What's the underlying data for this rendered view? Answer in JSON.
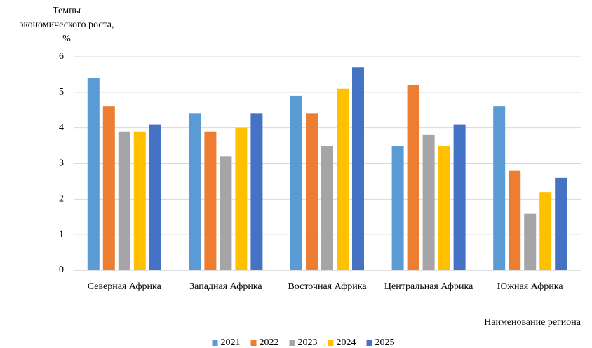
{
  "chart_data": {
    "type": "bar",
    "y_label": [
      "Темпы",
      "экономического роста,",
      "%"
    ],
    "x_label": "Наименование региона",
    "categories": [
      "Северная Африка",
      "Западная Африка",
      "Восточная Африка",
      "Центральная Африка",
      "Южная Африка"
    ],
    "series": [
      {
        "name": "2021",
        "color": "#5b9bd5",
        "values": [
          5.4,
          4.4,
          4.9,
          3.5,
          4.6
        ]
      },
      {
        "name": "2022",
        "color": "#ed7d31",
        "values": [
          4.6,
          3.9,
          4.4,
          5.2,
          2.8
        ]
      },
      {
        "name": "2023",
        "color": "#a5a5a5",
        "values": [
          3.9,
          3.2,
          3.5,
          3.8,
          1.6
        ]
      },
      {
        "name": "2024",
        "color": "#ffc000",
        "values": [
          3.9,
          4.0,
          5.1,
          3.5,
          2.2
        ]
      },
      {
        "name": "2025",
        "color": "#4472c4",
        "values": [
          4.1,
          4.4,
          5.7,
          4.1,
          2.6
        ]
      }
    ],
    "ylim": [
      0,
      6
    ],
    "yticks": [
      0,
      1,
      2,
      3,
      4,
      5,
      6
    ],
    "grid": true,
    "legend": "bottom"
  }
}
